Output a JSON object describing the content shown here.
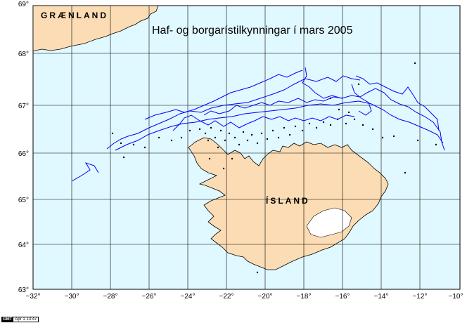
{
  "title": "Haf- og borgarístilkynningar í mars 2005",
  "labels": {
    "greenland": "GRÆNLAND",
    "iceland": "ÍSLAND"
  },
  "gmt_stamp": {
    "logo": "GMT",
    "date": "Apr 1 13:47"
  },
  "axes": {
    "lon_ticks": [
      "−32°",
      "−30°",
      "−28°",
      "−26°",
      "−24°",
      "−22°",
      "−20°",
      "−18°",
      "−16°",
      "−14°",
      "−12°",
      "−10°"
    ],
    "lat_ticks": [
      "63°",
      "64°",
      "65°",
      "66°",
      "67°",
      "68°",
      "69°"
    ]
  },
  "colors": {
    "ocean": "#e0f8ff",
    "land": "#fbdcb4",
    "ice_lines": "#0000ff",
    "glacier": "#ffffff",
    "grid": "#000000"
  }
}
